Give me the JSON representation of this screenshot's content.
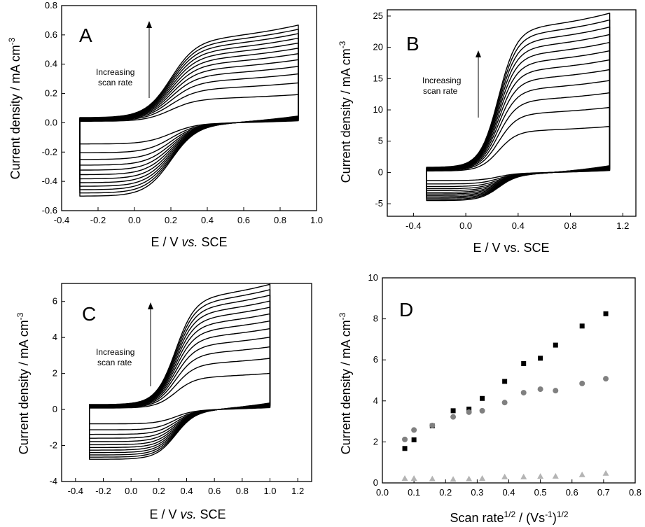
{
  "chart_data": [
    {
      "panel": "A",
      "type": "line",
      "xlabel": "E / V vs. SCE",
      "ylabel": "Current density / mA cm-3",
      "xlim": [
        -0.4,
        1.0
      ],
      "ylim": [
        -0.6,
        0.8
      ],
      "xticks": [
        -0.4,
        -0.2,
        0.0,
        0.2,
        0.4,
        0.6,
        0.8,
        1.0
      ],
      "yticks": [
        -0.6,
        -0.4,
        -0.2,
        0.0,
        0.2,
        0.4,
        0.6,
        0.8
      ],
      "xtick_labels": [
        "-0.4",
        "-0.2",
        "0.0",
        "0.2",
        "0.4",
        "0.6",
        "0.8",
        "1.0"
      ],
      "ytick_labels": [
        "-0.6",
        "-0.4",
        "-0.2",
        "0.0",
        "0.2",
        "0.4",
        "0.6",
        "0.8"
      ],
      "annotation": [
        "Increasing",
        "scan rate"
      ],
      "e_range": [
        -0.3,
        0.9
      ],
      "e0": 0.2,
      "peak_ox_max": 0.52,
      "peak_red_max": 0.48,
      "grid": false
    },
    {
      "panel": "B",
      "type": "line",
      "xlabel": "E / V vs. SCE",
      "ylabel": "Current density / mA cm-3",
      "xlim": [
        -0.6,
        1.3
      ],
      "ylim": [
        -7,
        26
      ],
      "xticks": [
        -0.4,
        0.0,
        0.4,
        0.8,
        1.2
      ],
      "yticks": [
        -5,
        0,
        5,
        10,
        15,
        20,
        25
      ],
      "xtick_labels": [
        "-0.4",
        "0.0",
        "0.4",
        "0.8",
        "1.2"
      ],
      "ytick_labels": [
        "-5",
        "0",
        "5",
        "10",
        "15",
        "20",
        "25"
      ],
      "annotation": [
        "Increasing",
        "scan rate"
      ],
      "e_range": [
        -0.3,
        1.1
      ],
      "e0": 0.25,
      "peak_ox_max": 22,
      "peak_red_max": 4,
      "grid": false
    },
    {
      "panel": "C",
      "type": "line",
      "xlabel": "E / V vs. SCE",
      "ylabel": "Current density / mA cm-3",
      "xlim": [
        -0.5,
        1.3
      ],
      "ylim": [
        -4,
        7
      ],
      "xticks": [
        -0.4,
        -0.2,
        0.0,
        0.2,
        0.4,
        0.6,
        0.8,
        1.0,
        1.2
      ],
      "yticks": [
        -4,
        -2,
        0,
        2,
        4,
        6
      ],
      "xtick_labels": [
        "-0.4",
        "-0.2",
        "0.0",
        "0.2",
        "0.4",
        "0.6",
        "0.8",
        "1.0",
        "1.2"
      ],
      "ytick_labels": [
        "-4",
        "-2",
        "0",
        "2",
        "4",
        "6"
      ],
      "annotation": [
        "Increasing",
        "scan rate"
      ],
      "e_range": [
        -0.3,
        1.0
      ],
      "e0": 0.32,
      "peak_ox_max": 5.8,
      "peak_red_max": 2.6,
      "grid": false
    },
    {
      "panel": "D",
      "type": "scatter",
      "xlabel": "Scan rate1/2 / (Vs-1)1/2",
      "ylabel": "Current density / mA cm-3",
      "xlim": [
        0.0,
        0.8
      ],
      "ylim": [
        0,
        10
      ],
      "xticks": [
        0.0,
        0.1,
        0.2,
        0.3,
        0.4,
        0.5,
        0.6,
        0.7,
        0.8
      ],
      "yticks": [
        0,
        2,
        4,
        6,
        8,
        10
      ],
      "xtick_labels": [
        "0.0",
        "0.1",
        "0.2",
        "0.3",
        "0.4",
        "0.5",
        "0.6",
        "0.7",
        "0.8"
      ],
      "ytick_labels": [
        "0",
        "2",
        "4",
        "6",
        "8",
        "10"
      ],
      "series": [
        {
          "marker": "square",
          "color": "#000000",
          "x": [
            0.071,
            0.1,
            0.158,
            0.224,
            0.274,
            0.316,
            0.387,
            0.447,
            0.5,
            0.548,
            0.632,
            0.707
          ],
          "values": [
            1.68,
            2.1,
            2.78,
            3.52,
            3.6,
            4.12,
            4.95,
            5.82,
            6.08,
            6.72,
            7.65,
            8.25
          ]
        },
        {
          "marker": "circle",
          "color": "#808080",
          "x": [
            0.071,
            0.1,
            0.158,
            0.224,
            0.274,
            0.316,
            0.387,
            0.447,
            0.5,
            0.548,
            0.632,
            0.707
          ],
          "values": [
            2.12,
            2.58,
            2.8,
            3.22,
            3.45,
            3.52,
            3.92,
            4.4,
            4.57,
            4.5,
            4.85,
            5.08
          ]
        },
        {
          "marker": "triangle",
          "color": "#b4b4b4",
          "x": [
            0.071,
            0.1,
            0.158,
            0.224,
            0.274,
            0.316,
            0.387,
            0.447,
            0.5,
            0.548,
            0.632,
            0.707
          ],
          "values": [
            0.22,
            0.22,
            0.2,
            0.18,
            0.2,
            0.22,
            0.3,
            0.3,
            0.32,
            0.33,
            0.4,
            0.47
          ]
        }
      ],
      "grid": false
    }
  ],
  "panel_labels": [
    "A",
    "B",
    "C",
    "D"
  ],
  "axis_text": {
    "e_label_a": "E / V ",
    "e_label_vs_italic": "vs.",
    "e_label_sce": " SCE",
    "e_label_b": "E / V vs. SCE",
    "cd_label_main": "Current density / mA cm",
    "cd_label_exp": "-3",
    "d_x_main": "Scan rate",
    "d_x_exp1": "1/2",
    "d_x_mid": " / (Vs",
    "d_x_exp2": "-1",
    "d_x_close": ")",
    "d_x_exp3": "1/2"
  },
  "annotation_text": {
    "line1": "Increasing",
    "line2": "scan rate"
  }
}
